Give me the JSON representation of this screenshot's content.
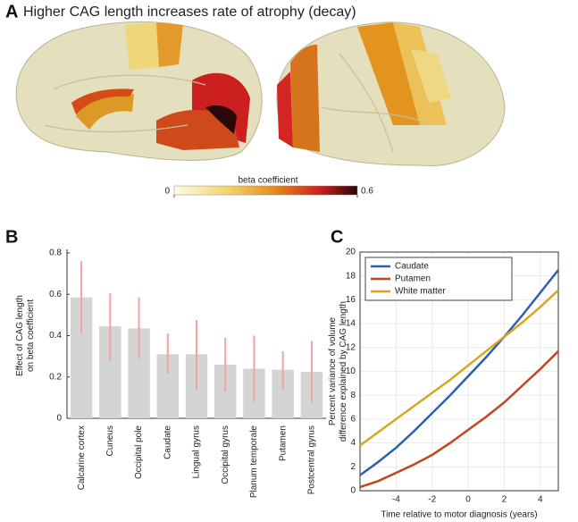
{
  "panel_a": {
    "label": "A",
    "title": "Higher CAG length increases rate of atrophy (decay)",
    "colorbar": {
      "label": "beta coefficient",
      "ticks": [
        0,
        0.6
      ]
    }
  },
  "chart_data": [
    {
      "type": "bar",
      "panel_label": "B",
      "ylabel": [
        "Effect of CAG length",
        "on beta coefficient"
      ],
      "categories": [
        "Calcarine cortex",
        "Cuneus",
        "Occipital pole",
        "Caudate",
        "Lingual gyrus",
        "Occipital gyrus",
        "Planum temporale",
        "Putamen",
        "Postcentral gyrus"
      ],
      "values": [
        0.585,
        0.445,
        0.435,
        0.31,
        0.31,
        0.26,
        0.24,
        0.235,
        0.225
      ],
      "ci_low": [
        0.41,
        0.28,
        0.29,
        0.215,
        0.14,
        0.13,
        0.08,
        0.14,
        0.075
      ],
      "ci_high": [
        0.76,
        0.605,
        0.585,
        0.41,
        0.475,
        0.39,
        0.4,
        0.325,
        0.375
      ],
      "color": "#d4d4d4",
      "error_color": "#f2a2a2",
      "ylim": [
        0,
        0.8
      ],
      "yticks": [
        0,
        0.2,
        0.4,
        0.6,
        0.8
      ],
      "grid": false
    },
    {
      "type": "line",
      "panel_label": "C",
      "xlabel": "Time relative to motor diagnosis (years)",
      "ylabel": [
        "Percent variance of volume",
        "difference explained by CAG length"
      ],
      "x": [
        -6,
        -5,
        -4,
        -3,
        -2,
        -1,
        0,
        1,
        2,
        3,
        4,
        5
      ],
      "series": [
        {
          "name": "Caudate",
          "color": "#2d5fb0",
          "values": [
            1.3,
            2.4,
            3.6,
            5.0,
            6.5,
            8.0,
            9.6,
            11.2,
            12.9,
            14.7,
            16.6,
            18.5
          ]
        },
        {
          "name": "Putamen",
          "color": "#c2461d",
          "values": [
            0.3,
            0.8,
            1.5,
            2.2,
            3.0,
            4.0,
            5.1,
            6.2,
            7.4,
            8.8,
            10.2,
            11.7
          ]
        },
        {
          "name": "White matter",
          "color": "#d9a521",
          "values": [
            3.8,
            4.9,
            6.0,
            7.1,
            8.2,
            9.3,
            10.5,
            11.7,
            12.9,
            14.1,
            15.4,
            16.8
          ]
        }
      ],
      "xlim": [
        -6,
        5
      ],
      "xticks": [
        -4,
        -2,
        0,
        2,
        4
      ],
      "ylim": [
        0,
        20
      ],
      "yticks": [
        0,
        2,
        4,
        6,
        8,
        10,
        12,
        14,
        16,
        18,
        20
      ],
      "grid": true,
      "legend": "upper-left"
    }
  ]
}
